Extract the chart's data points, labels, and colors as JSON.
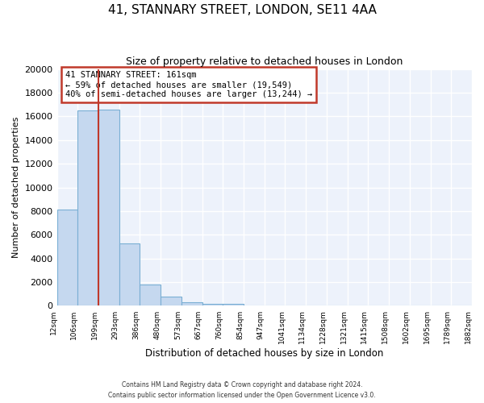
{
  "title1": "41, STANNARY STREET, LONDON, SE11 4AA",
  "title2": "Size of property relative to detached houses in London",
  "xlabel": "Distribution of detached houses by size in London",
  "ylabel": "Number of detached properties",
  "bar_values": [
    8100,
    16500,
    16600,
    5300,
    1800,
    750,
    300,
    150,
    200,
    0,
    0,
    0,
    0,
    0,
    0,
    0,
    0,
    0,
    0,
    0
  ],
  "bin_labels": [
    "12sqm",
    "106sqm",
    "199sqm",
    "293sqm",
    "386sqm",
    "480sqm",
    "573sqm",
    "667sqm",
    "760sqm",
    "854sqm",
    "947sqm",
    "1041sqm",
    "1134sqm",
    "1228sqm",
    "1321sqm",
    "1415sqm",
    "1508sqm",
    "1602sqm",
    "1695sqm",
    "1789sqm",
    "1882sqm"
  ],
  "bar_color": "#c5d8ef",
  "bar_edge_color": "#7aafd4",
  "vline_x": 2.0,
  "vline_color": "#c0392b",
  "annotation_title": "41 STANNARY STREET: 161sqm",
  "annotation_line1": "← 59% of detached houses are smaller (19,549)",
  "annotation_line2": "40% of semi-detached houses are larger (13,244) →",
  "annotation_box_color": "#c0392b",
  "ylim": [
    0,
    20000
  ],
  "yticks": [
    0,
    2000,
    4000,
    6000,
    8000,
    10000,
    12000,
    14000,
    16000,
    18000,
    20000
  ],
  "footer1": "Contains HM Land Registry data © Crown copyright and database right 2024.",
  "footer2": "Contains public sector information licensed under the Open Government Licence v3.0.",
  "bg_color": "#edf2fb",
  "title1_fontsize": 11,
  "title2_fontsize": 9
}
